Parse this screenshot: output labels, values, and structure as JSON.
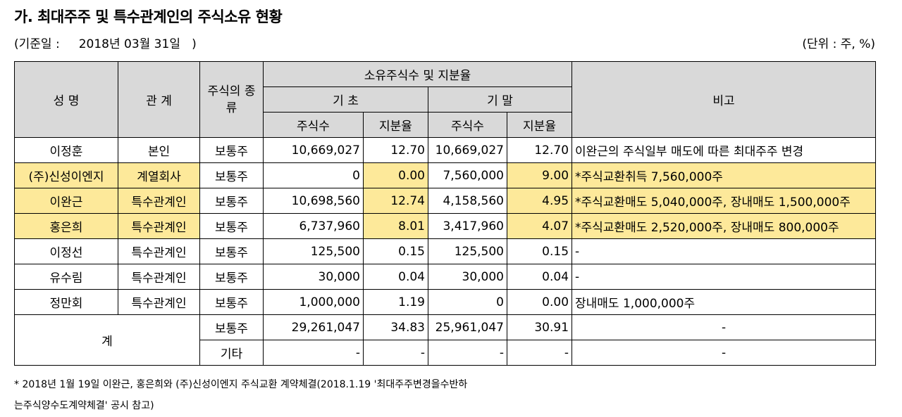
{
  "title": "가. 최대주주 및 특수관계인의 주식소유 현황",
  "base_date": "(기준일 :     2018년 03월 31일   )",
  "unit": "(단위 : 주, %)",
  "headers": {
    "name": "성 명",
    "relation": "관 계",
    "stock_type": "주식의 종류",
    "ownership": "소유주식수 및 지분율",
    "begin": "기 초",
    "end": "기 말",
    "shares": "주식수",
    "ratio": "지분율",
    "note": "비고"
  },
  "rows": [
    {
      "name": "이정훈",
      "relation": "본인",
      "type": "보통주",
      "begin_shares": "10,669,027",
      "begin_ratio": "12.70",
      "end_shares": "10,669,027",
      "end_ratio": "12.70",
      "note": "이완근의 주식일부 매도에 따른 최대주주 변경"
    },
    {
      "name": "(주)신성이엔지",
      "relation": "계열회사",
      "type": "보통주",
      "begin_shares": "0",
      "begin_ratio": "0.00",
      "end_shares": "7,560,000",
      "end_ratio": "9.00",
      "note": "*주식교환취득 7,560,000주"
    },
    {
      "name": "이완근",
      "relation": "특수관계인",
      "type": "보통주",
      "begin_shares": "10,698,560",
      "begin_ratio": "12.74",
      "end_shares": "4,158,560",
      "end_ratio": "4.95",
      "note": "*주식교환매도 5,040,000주, 장내매도 1,500,000주"
    },
    {
      "name": "홍은희",
      "relation": "특수관계인",
      "type": "보통주",
      "begin_shares": "6,737,960",
      "begin_ratio": "8.01",
      "end_shares": "3,417,960",
      "end_ratio": "4.07",
      "note": "*주식교환매도 2,520,000주, 장내매도 800,000주"
    },
    {
      "name": "이정선",
      "relation": "특수관계인",
      "type": "보통주",
      "begin_shares": "125,500",
      "begin_ratio": "0.15",
      "end_shares": "125,500",
      "end_ratio": "0.15",
      "note": "-"
    },
    {
      "name": "유수림",
      "relation": "특수관계인",
      "type": "보통주",
      "begin_shares": "30,000",
      "begin_ratio": "0.04",
      "end_shares": "30,000",
      "end_ratio": "0.04",
      "note": "-"
    },
    {
      "name": "정만회",
      "relation": "특수관계인",
      "type": "보통주",
      "begin_shares": "1,000,000",
      "begin_ratio": "1.19",
      "end_shares": "0",
      "end_ratio": "0.00",
      "note": "장내매도 1,000,000주"
    }
  ],
  "total": {
    "label": "계",
    "rows": [
      {
        "type": "보통주",
        "begin_shares": "29,261,047",
        "begin_ratio": "34.83",
        "end_shares": "25,961,047",
        "end_ratio": "30.91",
        "note": "-"
      },
      {
        "type": "기타",
        "begin_shares": "-",
        "begin_ratio": "-",
        "end_shares": "-",
        "end_ratio": "-",
        "note": "-"
      }
    ]
  },
  "footnote": "* 2018년 1월 19일 이완근, 홍은희와 (주)신성이엔지 주식교환 계약체결(2018.1.19 '최대주주변경을수반하\n는주식양수도계약체결' 공시 참고)",
  "colors": {
    "header_bg": "#d9d9d9",
    "highlight": "#fde99a"
  }
}
